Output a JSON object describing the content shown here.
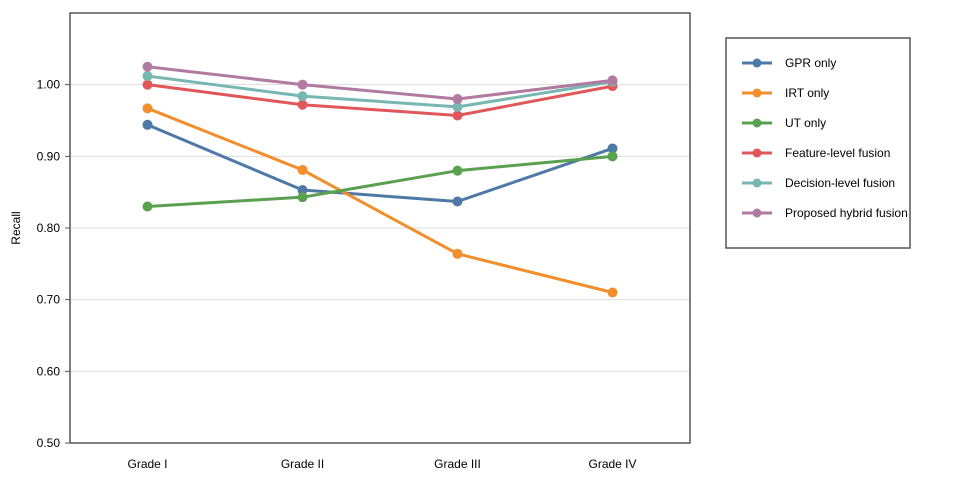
{
  "chart_data": {
    "type": "line",
    "title": "",
    "xlabel": "",
    "ylabel": "Recall",
    "categories": [
      "Grade I",
      "Grade II",
      "Grade III",
      "Grade IV"
    ],
    "ylim": [
      0.5,
      1.1
    ],
    "yticks": [
      "0.50",
      "0.60",
      "0.70",
      "0.80",
      "0.90",
      "1.00"
    ],
    "grid": "horizontal",
    "legend_position": "right",
    "series": [
      {
        "name": "GPR only",
        "color": "#4e79a7",
        "values": [
          0.944,
          0.853,
          0.837,
          0.911
        ]
      },
      {
        "name": "IRT only",
        "color": "#f28e2b",
        "values": [
          0.967,
          0.881,
          0.764,
          0.71
        ]
      },
      {
        "name": "UT only",
        "color": "#59a14f",
        "values": [
          0.83,
          0.843,
          0.88,
          0.9
        ]
      },
      {
        "name": "Feature-level fusion",
        "color": "#e15759",
        "values": [
          1.0,
          0.972,
          0.957,
          0.998
        ]
      },
      {
        "name": "Decision-level fusion",
        "color": "#76b7b2",
        "values": [
          1.012,
          0.984,
          0.969,
          1.004
        ]
      },
      {
        "name": "Proposed hybrid fusion",
        "color": "#b07aa1",
        "values": [
          1.025,
          1.0,
          0.98,
          1.006
        ]
      }
    ]
  }
}
